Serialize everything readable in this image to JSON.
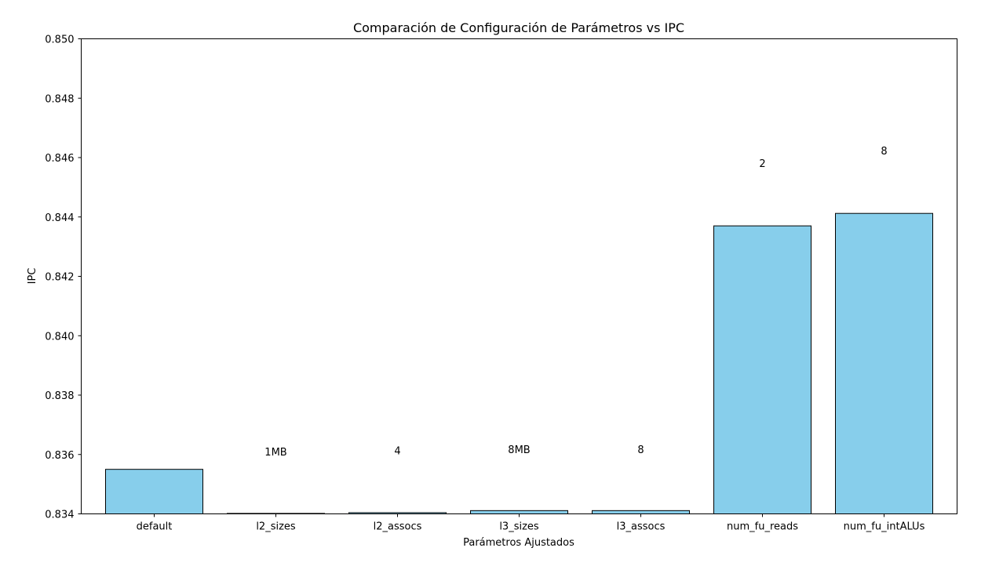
{
  "chart_data": {
    "type": "bar",
    "title": "Comparación de Configuración de Parámetros vs IPC",
    "xlabel": "Parámetros Ajustados",
    "ylabel": "IPC",
    "categories": [
      "default",
      "l2_sizes",
      "l2_assocs",
      "l3_sizes",
      "l3_assocs",
      "num_fu_reads",
      "num_fu_intALUs"
    ],
    "values": [
      0.8355,
      0.83401,
      0.83404,
      0.83411,
      0.83411,
      0.8437,
      0.84412
    ],
    "annotations": [
      "",
      "1MB",
      "4",
      "8MB",
      "8",
      "2",
      "8"
    ],
    "annotation_values": [
      null,
      0.8361,
      0.83614,
      0.83618,
      0.83618,
      0.84582,
      0.84624
    ],
    "ylim": [
      0.834,
      0.85
    ],
    "yticks": [
      0.834,
      0.836,
      0.838,
      0.84,
      0.842,
      0.844,
      0.846,
      0.848,
      0.85
    ],
    "ytick_labels": [
      "0.834",
      "0.836",
      "0.838",
      "0.840",
      "0.842",
      "0.844",
      "0.846",
      "0.848",
      "0.850"
    ],
    "bar_color": "#87ceeb",
    "bar_edge_color": "#000000",
    "grid": false,
    "legend": "none"
  }
}
